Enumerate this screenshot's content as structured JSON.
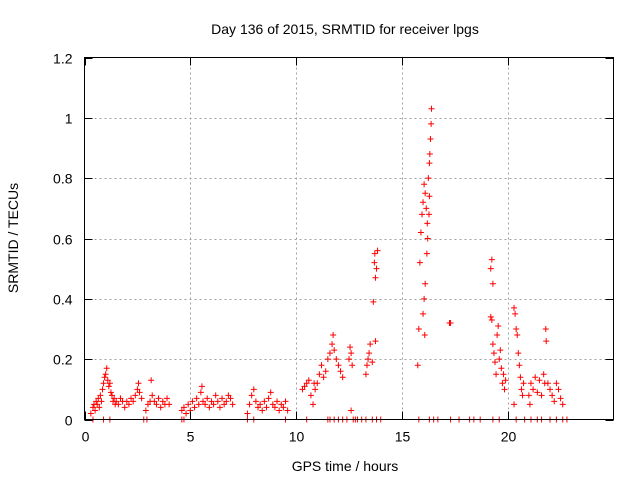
{
  "chart_data": {
    "type": "scatter",
    "title": "Day 136 of 2015, SRMTID for receiver lpgs",
    "xlabel": "GPS time / hours",
    "ylabel": "SRMTID / TECUs",
    "xlim": [
      0,
      25
    ],
    "ylim": [
      0,
      1.2
    ],
    "x_ticks": [
      0,
      5,
      10,
      15,
      20
    ],
    "x_tick_labels": [
      "0",
      "5",
      "10",
      "15",
      "20"
    ],
    "y_ticks": [
      0,
      0.2,
      0.4,
      0.6,
      0.8,
      1.0,
      1.2
    ],
    "y_tick_labels": [
      "0",
      "0.2",
      "0.4",
      "0.6",
      "0.8",
      "1",
      "1.2"
    ],
    "grid": true,
    "marker": "+",
    "color": "#ff0000",
    "series": [
      {
        "name": "SRMTID",
        "points": [
          [
            0.3,
            0.02
          ],
          [
            0.4,
            0.04
          ],
          [
            0.45,
            0.05
          ],
          [
            0.5,
            0.03
          ],
          [
            0.55,
            0.06
          ],
          [
            0.6,
            0.05
          ],
          [
            0.65,
            0.07
          ],
          [
            0.7,
            0.04
          ],
          [
            0.75,
            0.08
          ],
          [
            0.8,
            0.06
          ],
          [
            0.85,
            0.1
          ],
          [
            0.9,
            0.12
          ],
          [
            0.95,
            0.14
          ],
          [
            1.0,
            0.15
          ],
          [
            1.05,
            0.17
          ],
          [
            1.1,
            0.13
          ],
          [
            1.15,
            0.11
          ],
          [
            1.2,
            0.12
          ],
          [
            1.25,
            0.09
          ],
          [
            1.3,
            0.08
          ],
          [
            1.35,
            0.06
          ],
          [
            1.4,
            0.07
          ],
          [
            1.45,
            0.05
          ],
          [
            1.5,
            0.06
          ],
          [
            1.6,
            0.05
          ],
          [
            1.7,
            0.07
          ],
          [
            1.8,
            0.06
          ],
          [
            1.9,
            0.04
          ],
          [
            2.0,
            0.06
          ],
          [
            2.1,
            0.05
          ],
          [
            2.2,
            0.07
          ],
          [
            2.3,
            0.06
          ],
          [
            2.4,
            0.08
          ],
          [
            2.5,
            0.1
          ],
          [
            2.55,
            0.12
          ],
          [
            2.6,
            0.09
          ],
          [
            2.7,
            0.07
          ],
          [
            2.9,
            0.03
          ],
          [
            3.0,
            0.05
          ],
          [
            3.1,
            0.06
          ],
          [
            3.15,
            0.13
          ],
          [
            3.2,
            0.08
          ],
          [
            3.3,
            0.06
          ],
          [
            3.4,
            0.05
          ],
          [
            3.5,
            0.07
          ],
          [
            3.6,
            0.04
          ],
          [
            3.7,
            0.06
          ],
          [
            3.8,
            0.05
          ],
          [
            3.9,
            0.07
          ],
          [
            4.0,
            0.05
          ],
          [
            4.6,
            0.03
          ],
          [
            4.7,
            0.04
          ],
          [
            4.8,
            0.02
          ],
          [
            4.9,
            0.05
          ],
          [
            5.0,
            0.03
          ],
          [
            5.1,
            0.06
          ],
          [
            5.2,
            0.04
          ],
          [
            5.3,
            0.07
          ],
          [
            5.4,
            0.05
          ],
          [
            5.5,
            0.09
          ],
          [
            5.55,
            0.11
          ],
          [
            5.6,
            0.06
          ],
          [
            5.7,
            0.05
          ],
          [
            5.8,
            0.07
          ],
          [
            5.9,
            0.04
          ],
          [
            6.0,
            0.06
          ],
          [
            6.1,
            0.05
          ],
          [
            6.2,
            0.08
          ],
          [
            6.3,
            0.06
          ],
          [
            6.4,
            0.04
          ],
          [
            6.5,
            0.07
          ],
          [
            6.6,
            0.05
          ],
          [
            6.7,
            0.06
          ],
          [
            6.8,
            0.08
          ],
          [
            6.9,
            0.07
          ],
          [
            7.0,
            0.05
          ],
          [
            7.7,
            0.02
          ],
          [
            7.8,
            0.05
          ],
          [
            7.9,
            0.08
          ],
          [
            8.0,
            0.1
          ],
          [
            8.1,
            0.06
          ],
          [
            8.2,
            0.04
          ],
          [
            8.3,
            0.05
          ],
          [
            8.4,
            0.03
          ],
          [
            8.5,
            0.06
          ],
          [
            8.6,
            0.04
          ],
          [
            8.7,
            0.07
          ],
          [
            8.8,
            0.09
          ],
          [
            8.9,
            0.05
          ],
          [
            9.0,
            0.04
          ],
          [
            9.1,
            0.06
          ],
          [
            9.2,
            0.03
          ],
          [
            9.3,
            0.05
          ],
          [
            9.4,
            0.04
          ],
          [
            9.5,
            0.06
          ],
          [
            9.6,
            0.03
          ],
          [
            10.3,
            0.1
          ],
          [
            10.4,
            0.11
          ],
          [
            10.5,
            0.12
          ],
          [
            10.6,
            0.13
          ],
          [
            10.7,
            0.08
          ],
          [
            10.8,
            0.05
          ],
          [
            10.85,
            0.12
          ],
          [
            10.9,
            0.1
          ],
          [
            11.0,
            0.12
          ],
          [
            11.1,
            0.15
          ],
          [
            11.2,
            0.18
          ],
          [
            11.3,
            0.14
          ],
          [
            11.4,
            0.16
          ],
          [
            11.5,
            0.2
          ],
          [
            11.6,
            0.22
          ],
          [
            11.7,
            0.25
          ],
          [
            11.75,
            0.28
          ],
          [
            11.8,
            0.23
          ],
          [
            11.9,
            0.2
          ],
          [
            12.0,
            0.18
          ],
          [
            12.1,
            0.16
          ],
          [
            12.2,
            0.14
          ],
          [
            12.5,
            0.2
          ],
          [
            12.55,
            0.24
          ],
          [
            12.6,
            0.22
          ],
          [
            12.65,
            0.18
          ],
          [
            12.6,
            0.03
          ],
          [
            13.3,
            0.15
          ],
          [
            13.35,
            0.18
          ],
          [
            13.4,
            0.2
          ],
          [
            13.45,
            0.22
          ],
          [
            13.5,
            0.25
          ],
          [
            13.6,
            0.19
          ],
          [
            13.7,
            0.52
          ],
          [
            13.72,
            0.55
          ],
          [
            13.75,
            0.47
          ],
          [
            13.8,
            0.5
          ],
          [
            13.85,
            0.56
          ],
          [
            13.65,
            0.39
          ],
          [
            13.75,
            0.26
          ],
          [
            15.75,
            0.18
          ],
          [
            15.8,
            0.3
          ],
          [
            15.85,
            0.52
          ],
          [
            15.9,
            0.62
          ],
          [
            15.95,
            0.68
          ],
          [
            16.0,
            0.72
          ],
          [
            16.05,
            0.78
          ],
          [
            16.1,
            0.75
          ],
          [
            16.15,
            0.7
          ],
          [
            16.2,
            0.65
          ],
          [
            16.25,
            0.8
          ],
          [
            16.3,
            0.85
          ],
          [
            16.32,
            0.88
          ],
          [
            16.35,
            0.93
          ],
          [
            16.38,
            0.98
          ],
          [
            16.4,
            1.03
          ],
          [
            16.22,
            0.6
          ],
          [
            16.18,
            0.55
          ],
          [
            16.1,
            0.45
          ],
          [
            16.05,
            0.4
          ],
          [
            16.0,
            0.35
          ],
          [
            16.08,
            0.28
          ],
          [
            16.3,
            0.74
          ],
          [
            16.28,
            0.68
          ],
          [
            17.25,
            0.32
          ],
          [
            17.3,
            0.32
          ],
          [
            19.2,
            0.5
          ],
          [
            19.25,
            0.53
          ],
          [
            19.3,
            0.45
          ],
          [
            19.2,
            0.34
          ],
          [
            19.25,
            0.33
          ],
          [
            19.3,
            0.25
          ],
          [
            19.35,
            0.22
          ],
          [
            19.4,
            0.19
          ],
          [
            19.45,
            0.15
          ],
          [
            19.5,
            0.28
          ],
          [
            19.55,
            0.31
          ],
          [
            19.6,
            0.2
          ],
          [
            19.65,
            0.23
          ],
          [
            19.7,
            0.17
          ],
          [
            19.75,
            0.12
          ],
          [
            19.8,
            0.15
          ],
          [
            19.85,
            0.1
          ],
          [
            19.9,
            0.13
          ],
          [
            20.3,
            0.37
          ],
          [
            20.35,
            0.35
          ],
          [
            20.4,
            0.3
          ],
          [
            20.45,
            0.28
          ],
          [
            20.5,
            0.22
          ],
          [
            20.55,
            0.18
          ],
          [
            20.6,
            0.14
          ],
          [
            20.65,
            0.1
          ],
          [
            20.7,
            0.08
          ],
          [
            20.75,
            0.12
          ],
          [
            20.3,
            0.05
          ],
          [
            21.0,
            0.08
          ],
          [
            21.05,
            0.05
          ],
          [
            21.1,
            0.12
          ],
          [
            21.2,
            0.1
          ],
          [
            21.3,
            0.14
          ],
          [
            21.4,
            0.09
          ],
          [
            21.5,
            0.13
          ],
          [
            21.6,
            0.08
          ],
          [
            21.7,
            0.15
          ],
          [
            21.75,
            0.12
          ],
          [
            21.8,
            0.3
          ],
          [
            21.82,
            0.26
          ],
          [
            21.9,
            0.12
          ],
          [
            22.0,
            0.1
          ],
          [
            22.1,
            0.08
          ],
          [
            22.2,
            0.06
          ],
          [
            22.3,
            0.12
          ],
          [
            22.4,
            0.1
          ],
          [
            22.5,
            0.07
          ],
          [
            22.6,
            0.05
          ]
        ]
      }
    ],
    "zero_series_x": [
      0.4,
      0.9,
      1.2,
      2.8,
      2.95,
      4.6,
      4.7,
      7.7,
      8.0,
      9.5,
      10.5,
      11.5,
      11.6,
      11.8,
      12.0,
      12.2,
      12.4,
      12.7,
      12.8,
      12.9,
      13.1,
      13.3,
      13.6,
      13.8,
      14.0,
      15.8,
      16.3,
      16.5,
      16.7,
      17.3,
      17.7,
      18.2,
      18.4,
      18.7,
      19.3,
      19.6,
      20.4,
      20.8,
      21.1,
      21.4,
      21.6,
      22.0,
      22.3,
      22.6,
      22.8
    ]
  }
}
